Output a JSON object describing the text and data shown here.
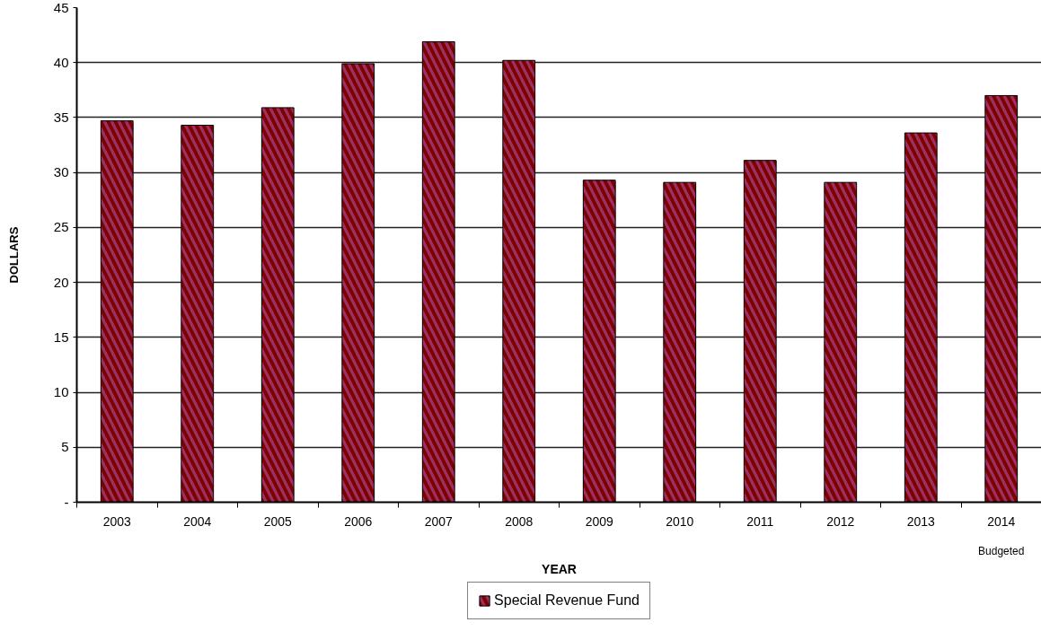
{
  "chart_data": {
    "type": "bar",
    "xlabel": "YEAR",
    "ylabel": "DOLLARS",
    "categories": [
      "2003",
      "2004",
      "2005",
      "2006",
      "2007",
      "2008",
      "2009",
      "2010",
      "2011",
      "2012",
      "2013",
      "2014"
    ],
    "series": [
      {
        "name": "Special Revenue Fund",
        "color": "#993366",
        "values": [
          34.7,
          34.3,
          35.9,
          39.9,
          41.9,
          40.2,
          29.3,
          29.1,
          31.1,
          29.1,
          33.6,
          37.0
        ]
      }
    ],
    "ylim": [
      0,
      45
    ],
    "yticks": [
      {
        "value": 0,
        "label": "-"
      },
      5,
      10,
      15,
      20,
      25,
      30,
      35,
      40,
      45
    ],
    "grid": "y",
    "legend": "bottom",
    "annotations": [
      "Budgeted"
    ]
  }
}
